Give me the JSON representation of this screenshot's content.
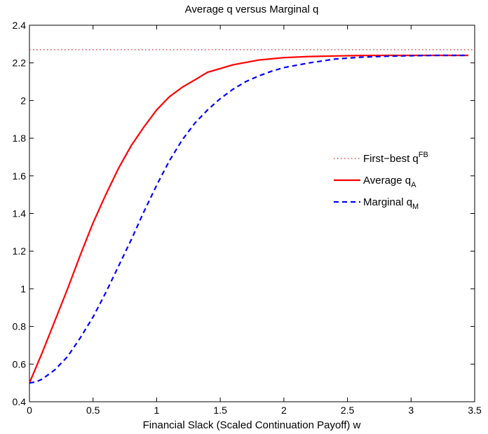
{
  "chart_data": {
    "type": "line",
    "title": "Average q versus Marginal q",
    "xlabel": "Financial Slack (Scaled Continuation Payoff) w",
    "ylabel": "",
    "xlim": [
      0,
      3.5
    ],
    "ylim": [
      0.4,
      2.4
    ],
    "xticks": [
      0,
      0.5,
      1,
      1.5,
      2,
      2.5,
      3,
      3.5
    ],
    "xtick_labels": [
      "0",
      "0.5",
      "1",
      "1.5",
      "2",
      "2.5",
      "3",
      "3.5"
    ],
    "yticks": [
      0.4,
      0.6,
      0.8,
      1.0,
      1.2,
      1.4,
      1.6,
      1.8,
      2.0,
      2.2,
      2.4
    ],
    "ytick_labels": [
      "0.4",
      "0.6",
      "0.8",
      "1",
      "1.2",
      "1.4",
      "1.6",
      "1.8",
      "2",
      "2.2",
      "2.4"
    ],
    "grid": false,
    "legend_position": "center-right",
    "series": [
      {
        "name": "First−best q",
        "name_sup": "FB",
        "color": "#d62728",
        "style": "dotted",
        "x": [
          0,
          3.5
        ],
        "y": [
          2.27,
          2.27
        ]
      },
      {
        "name": "Average q",
        "name_sub": "A",
        "color": "#ff0000",
        "style": "solid",
        "x": [
          0,
          0.05,
          0.1,
          0.2,
          0.3,
          0.4,
          0.5,
          0.6,
          0.7,
          0.8,
          0.9,
          1.0,
          1.1,
          1.2,
          1.3,
          1.4,
          1.5,
          1.6,
          1.8,
          2.0,
          2.2,
          2.4,
          2.6,
          2.8,
          3.0,
          3.2,
          3.45
        ],
        "y": [
          0.5,
          0.58,
          0.66,
          0.83,
          1.0,
          1.18,
          1.35,
          1.5,
          1.64,
          1.76,
          1.86,
          1.95,
          2.02,
          2.07,
          2.11,
          2.15,
          2.17,
          2.19,
          2.215,
          2.228,
          2.234,
          2.237,
          2.239,
          2.24,
          2.24,
          2.24,
          2.24
        ]
      },
      {
        "name": "Marginal q",
        "name_sub": "M",
        "color": "#0000ff",
        "style": "dashed",
        "x": [
          0,
          0.05,
          0.1,
          0.2,
          0.3,
          0.4,
          0.5,
          0.6,
          0.7,
          0.8,
          0.9,
          1.0,
          1.1,
          1.2,
          1.3,
          1.4,
          1.5,
          1.6,
          1.7,
          1.8,
          1.9,
          2.0,
          2.2,
          2.4,
          2.6,
          2.8,
          3.0,
          3.2,
          3.45
        ],
        "y": [
          0.5,
          0.505,
          0.52,
          0.57,
          0.64,
          0.74,
          0.85,
          0.98,
          1.12,
          1.26,
          1.41,
          1.55,
          1.68,
          1.79,
          1.88,
          1.95,
          2.01,
          2.06,
          2.1,
          2.13,
          2.155,
          2.175,
          2.2,
          2.22,
          2.23,
          2.235,
          2.238,
          2.24,
          2.24
        ]
      }
    ]
  }
}
